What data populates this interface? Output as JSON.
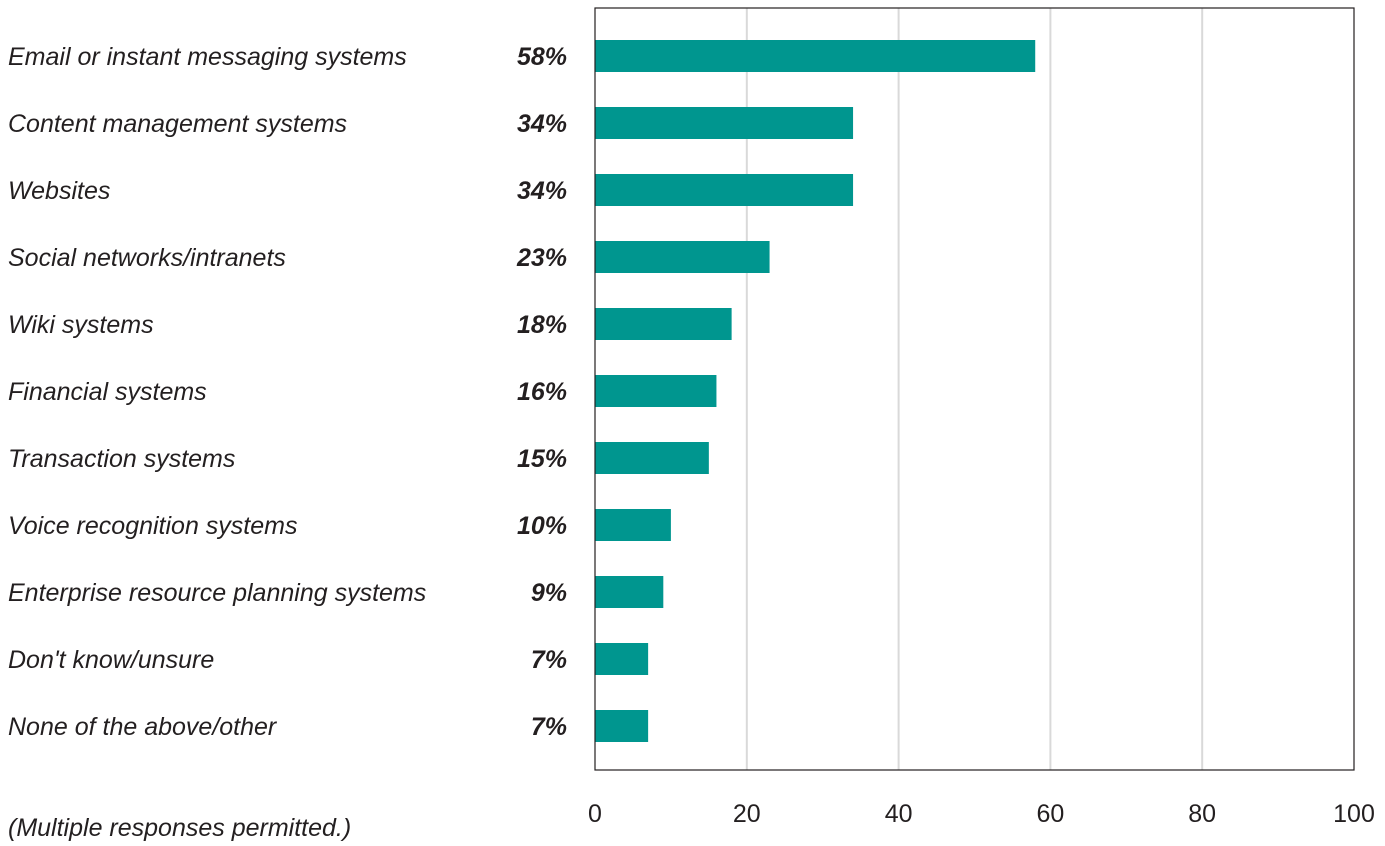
{
  "chart_data": {
    "type": "bar",
    "orientation": "horizontal",
    "categories": [
      "Email or instant messaging systems",
      "Content management systems",
      "Websites",
      "Social networks/intranets",
      "Wiki systems",
      "Financial systems",
      "Transaction systems",
      "Voice recognition systems",
      "Enterprise resource planning systems",
      "Don't know/unsure",
      "None of the above/other"
    ],
    "values": [
      58,
      34,
      34,
      23,
      18,
      16,
      15,
      10,
      9,
      7,
      7
    ],
    "value_labels": [
      "58%",
      "34%",
      "34%",
      "23%",
      "18%",
      "16%",
      "15%",
      "10%",
      "9%",
      "7%",
      "7%"
    ],
    "xlim": [
      0,
      100
    ],
    "x_ticks": [
      0,
      20,
      40,
      60,
      80,
      100
    ],
    "grid": true,
    "title": "",
    "xlabel": "",
    "ylabel": "",
    "bar_color": "#00968f",
    "grid_color": "#d9d9d9",
    "axis_color": "#231f20"
  },
  "footnote": "(Multiple responses permitted.)"
}
